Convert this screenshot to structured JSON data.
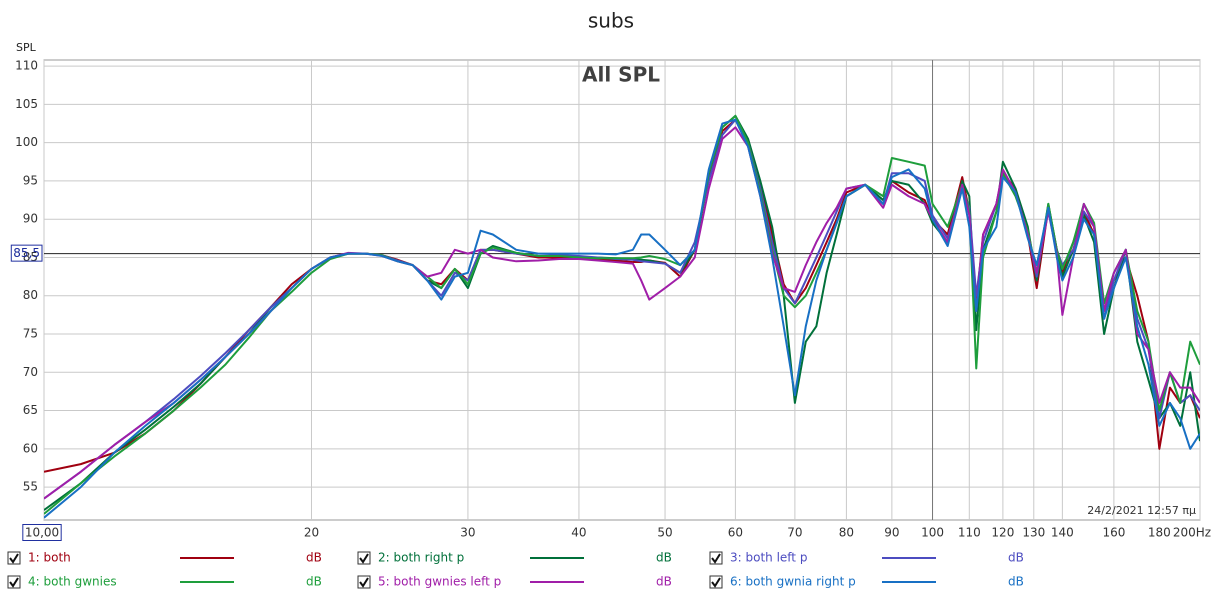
{
  "chart_data": {
    "type": "line",
    "title": "subs",
    "plot_title": "All SPL",
    "y_label": "SPL",
    "timestamp": "24/2/2021 12:57 πμ",
    "legend_unit": "dB",
    "log_x": true,
    "grid": true,
    "xlim": [
      10,
      200
    ],
    "ylim": [
      50.7,
      110.8
    ],
    "xticks": [
      {
        "value": 10,
        "label": "10,00"
      },
      20,
      30,
      40,
      50,
      60,
      70,
      80,
      90,
      100,
      110,
      120,
      130,
      140,
      160,
      180,
      {
        "value": 200,
        "label": "200Hz"
      }
    ],
    "yticks": [
      55,
      60,
      65,
      70,
      75,
      80,
      85,
      90,
      95,
      100,
      105,
      110
    ],
    "cursor_y": {
      "value": 85.5,
      "label": "85,5"
    },
    "cursor_x": 100,
    "x": [
      10,
      11,
      12,
      13,
      14,
      15,
      16,
      17,
      18,
      19,
      20,
      21,
      22,
      23,
      24,
      25,
      26,
      27,
      28,
      29,
      30,
      31,
      32,
      34,
      36,
      38,
      40,
      42,
      44,
      46,
      47,
      48,
      50,
      52,
      54,
      56,
      58,
      60,
      62,
      64,
      66,
      68,
      70,
      72,
      74,
      76,
      78,
      80,
      84,
      88,
      90,
      94,
      98,
      100,
      104,
      108,
      110,
      112,
      114,
      118,
      120,
      124,
      128,
      131,
      135,
      138,
      140,
      144,
      148,
      152,
      156,
      160,
      165,
      170,
      175,
      180,
      185,
      190,
      195,
      200
    ],
    "series": [
      {
        "name": "1: both",
        "color": "#a00010",
        "values": [
          57,
          58,
          59.5,
          62,
          65,
          68.5,
          72,
          75.5,
          78.5,
          81.5,
          83.5,
          85,
          85.5,
          85.5,
          85.3,
          84.7,
          84,
          82,
          81.5,
          83.5,
          82,
          86,
          86,
          85.5,
          85,
          85,
          85,
          84.8,
          84.6,
          84.4,
          84.4,
          84.6,
          84.3,
          82.5,
          86,
          95.5,
          101.5,
          103,
          100,
          94.5,
          88,
          81.5,
          79,
          81,
          84,
          87,
          90,
          93.5,
          94.5,
          92,
          95,
          93.5,
          92.5,
          90,
          88,
          95.5,
          91,
          79,
          88,
          92,
          96,
          94,
          88,
          81,
          91.5,
          86,
          83,
          87,
          91,
          88,
          78,
          82,
          85,
          80,
          74,
          60,
          68,
          66,
          67,
          64
        ]
      },
      {
        "name": "2: both right p",
        "color": "#00703a",
        "values": [
          52,
          55.5,
          59.5,
          62.5,
          65.5,
          68.5,
          72,
          75,
          78.5,
          81,
          83.5,
          85,
          85.5,
          85.5,
          85.3,
          84.6,
          84,
          82,
          81,
          83.5,
          81,
          85.5,
          86.5,
          85.6,
          85.2,
          85.2,
          85,
          85,
          84.9,
          84.8,
          84.7,
          84.6,
          84.2,
          83,
          86,
          96,
          102,
          103.5,
          100.5,
          95,
          89,
          80,
          66,
          74,
          76,
          83,
          88,
          93,
          94.5,
          92.5,
          95,
          94.5,
          92,
          89.5,
          87,
          95,
          93,
          75.5,
          86,
          91,
          97.5,
          94,
          89,
          82,
          92,
          86,
          82.5,
          86,
          90.5,
          87,
          75,
          81,
          86,
          74,
          69,
          64,
          66,
          63,
          70,
          61
        ]
      },
      {
        "name": "3: both left p",
        "color": "#4c4cc0",
        "values": [
          53.5,
          57,
          60.5,
          63.5,
          66.5,
          69.5,
          72.5,
          75.5,
          78.5,
          81,
          83.5,
          85,
          85.5,
          85.5,
          85.3,
          84.6,
          84,
          82,
          80,
          83,
          82,
          86,
          86,
          85.5,
          85.2,
          85.3,
          85.2,
          85,
          84.8,
          84.7,
          84.5,
          84.4,
          84.2,
          83,
          87,
          95,
          101,
          103,
          100,
          94,
          87,
          81,
          79,
          82,
          85,
          88,
          91,
          94,
          94.5,
          92,
          96,
          96,
          95,
          90.5,
          87.5,
          94,
          91.5,
          80,
          87,
          92,
          96,
          93.5,
          88,
          82.5,
          91.5,
          86,
          84,
          86,
          91,
          89,
          77,
          82,
          86,
          77,
          73,
          64,
          70,
          66,
          67,
          65
        ]
      },
      {
        "name": "4: both gwnies",
        "color": "#1e9e3c",
        "values": [
          51.5,
          55.5,
          59,
          62,
          65,
          68,
          71,
          74.5,
          78,
          80.5,
          83,
          84.8,
          85.5,
          85.5,
          85.3,
          84.5,
          84,
          82.5,
          81,
          83.5,
          81.5,
          85.5,
          86.3,
          85.6,
          85.2,
          85.2,
          85,
          84.9,
          84.9,
          84.9,
          85,
          85.2,
          84.8,
          84,
          86,
          96,
          102,
          103.5,
          100,
          93.5,
          86,
          80,
          78.5,
          80,
          83,
          86,
          89.5,
          93,
          94.5,
          93,
          98,
          97.5,
          97,
          92,
          89,
          94.5,
          91,
          70.5,
          85,
          91,
          96,
          93,
          88.5,
          83,
          92,
          86,
          83.5,
          87,
          92,
          89.5,
          79,
          83,
          86,
          78,
          74,
          65,
          70,
          66,
          74,
          71
        ]
      },
      {
        "name": "5: both gwnies left p",
        "color": "#a01ea8",
        "values": [
          53.5,
          57,
          60.5,
          63.5,
          66,
          69,
          72,
          75,
          78,
          81,
          83.5,
          85,
          85.6,
          85.5,
          85.2,
          84.5,
          84,
          82.5,
          83,
          86,
          85.5,
          86,
          85,
          84.5,
          84.6,
          84.8,
          84.8,
          84.6,
          84.4,
          84.2,
          82,
          79.5,
          81,
          82.5,
          85,
          94,
          100.5,
          102,
          99.5,
          93,
          85.5,
          81,
          80.5,
          84,
          87,
          89.5,
          91.5,
          94,
          94.5,
          91.5,
          94.5,
          93,
          92,
          90,
          87,
          94.5,
          90.5,
          78,
          88,
          92,
          96.5,
          93.5,
          88,
          83,
          91,
          85.5,
          77.5,
          85,
          92,
          89,
          78,
          83,
          86,
          75,
          73,
          66,
          70,
          68,
          68,
          66
        ]
      },
      {
        "name": "6: both gwnia right p",
        "color": "#1870c4",
        "values": [
          51,
          55,
          59.5,
          63,
          66,
          69,
          72,
          75,
          78,
          81,
          83.5,
          85,
          85.5,
          85.5,
          85.2,
          84.5,
          84,
          82,
          79.5,
          82.5,
          83,
          88.5,
          88,
          86,
          85.5,
          85.5,
          85.5,
          85.5,
          85.4,
          86,
          88,
          88,
          86,
          84,
          86,
          96.5,
          102.5,
          103,
          99.5,
          93,
          85,
          76,
          67,
          76,
          82,
          86,
          89.5,
          93,
          94.5,
          92,
          95.5,
          96.5,
          94,
          90,
          86.5,
          94,
          89,
          78,
          86,
          89,
          95.5,
          93.5,
          87.5,
          84,
          91.5,
          85,
          82,
          85,
          90,
          88,
          77,
          81,
          85,
          76,
          71,
          63,
          66,
          64,
          60,
          62
        ]
      }
    ]
  }
}
